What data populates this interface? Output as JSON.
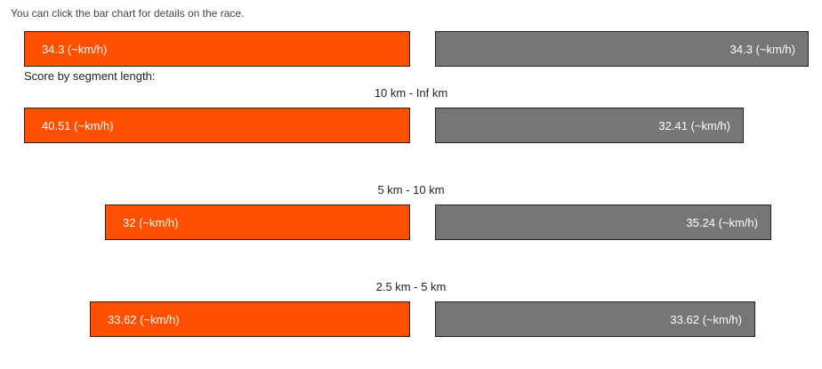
{
  "hint": "You can click the bar chart for details on the race.",
  "section_title": "Score by segment length:",
  "colors": {
    "left": "#ff4f00",
    "right": "#767676"
  },
  "chart_data": {
    "type": "bar",
    "unit": "(~km/h)",
    "overall": {
      "left": {
        "value": 34.3,
        "label": "34.3 (~km/h)"
      },
      "right": {
        "value": 34.3,
        "label": "34.3 (~km/h)"
      }
    },
    "segments": [
      {
        "category": "10 km - Inf km",
        "left": {
          "value": 40.51,
          "label": "40.51 (~km/h)"
        },
        "right": {
          "value": 32.41,
          "label": "32.41 (~km/h)"
        }
      },
      {
        "category": "5 km - 10 km",
        "left": {
          "value": 32,
          "label": "32 (~km/h)"
        },
        "right": {
          "value": 35.24,
          "label": "35.24 (~km/h)"
        }
      },
      {
        "category": "2.5 km - 5 km",
        "left": {
          "value": 33.62,
          "label": "33.62 (~km/h)"
        },
        "right": {
          "value": 33.62,
          "label": "33.62 (~km/h)"
        }
      }
    ]
  }
}
